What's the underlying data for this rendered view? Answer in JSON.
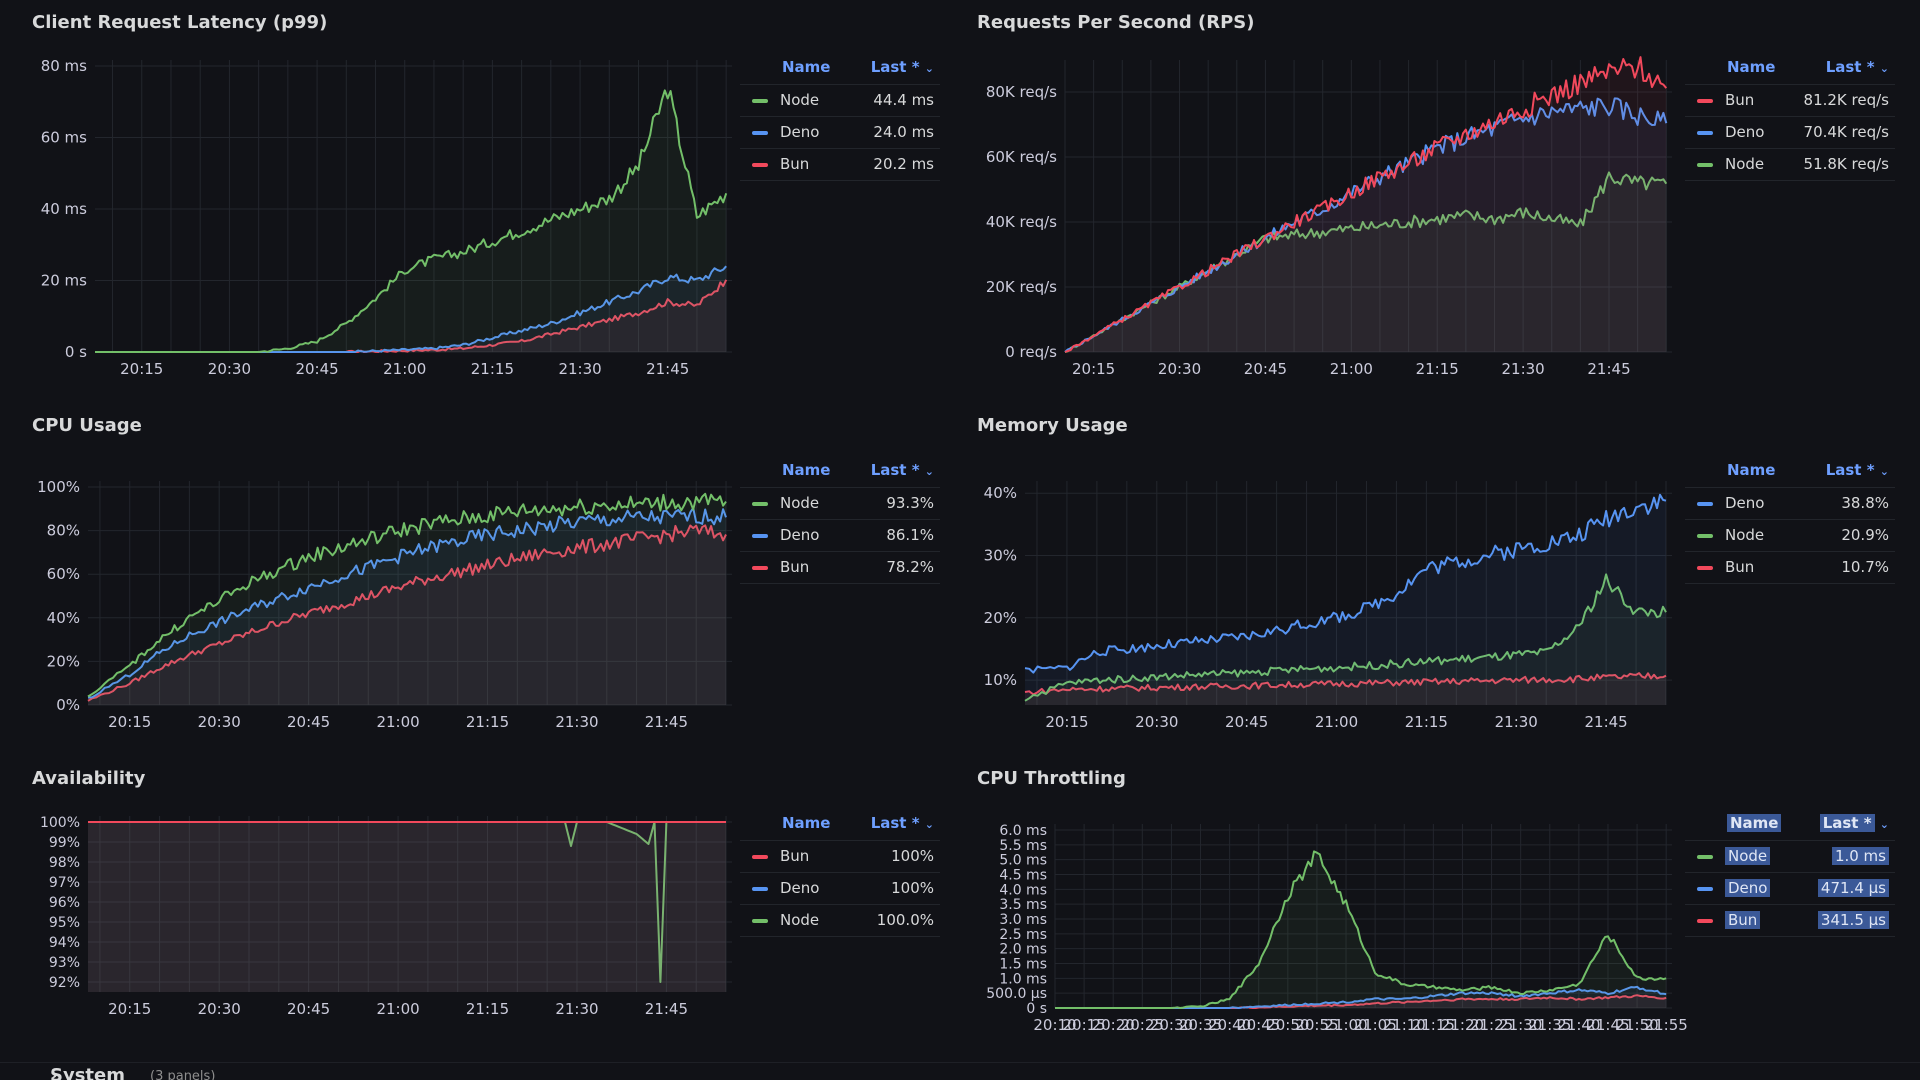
{
  "colors": {
    "Node": "#73bf69",
    "Deno": "#5794f2",
    "Bun": "#f2495c",
    "grid": "#23262d",
    "bg": "#111217"
  },
  "legend_headers": {
    "name": "Name",
    "last": "Last *"
  },
  "footer": {
    "label": "System",
    "sub": "(3 panels)"
  },
  "panels": [
    {
      "id": "latency",
      "title": "Client Request Latency (p99)",
      "legend": [
        {
          "name": "Node",
          "last": "44.4 ms"
        },
        {
          "name": "Deno",
          "last": "24.0 ms"
        },
        {
          "name": "Bun",
          "last": "20.2 ms"
        }
      ]
    },
    {
      "id": "rps",
      "title": "Requests Per Second (RPS)",
      "legend": [
        {
          "name": "Bun",
          "last": "81.2K req/s"
        },
        {
          "name": "Deno",
          "last": "70.4K req/s"
        },
        {
          "name": "Node",
          "last": "51.8K req/s"
        }
      ]
    },
    {
      "id": "cpu",
      "title": "CPU Usage",
      "legend": [
        {
          "name": "Node",
          "last": "93.3%"
        },
        {
          "name": "Deno",
          "last": "86.1%"
        },
        {
          "name": "Bun",
          "last": "78.2%"
        }
      ]
    },
    {
      "id": "mem",
      "title": "Memory Usage",
      "legend": [
        {
          "name": "Deno",
          "last": "38.8%"
        },
        {
          "name": "Node",
          "last": "20.9%"
        },
        {
          "name": "Bun",
          "last": "10.7%"
        }
      ]
    },
    {
      "id": "avail",
      "title": "Availability",
      "legend": [
        {
          "name": "Bun",
          "last": "100%"
        },
        {
          "name": "Deno",
          "last": "100%"
        },
        {
          "name": "Node",
          "last": "100.0%"
        }
      ]
    },
    {
      "id": "throttle",
      "title": "CPU Throttling",
      "legend_selected": true,
      "legend": [
        {
          "name": "Node",
          "last": "1.0 ms"
        },
        {
          "name": "Deno",
          "last": "471.4 µs"
        },
        {
          "name": "Bun",
          "last": "341.5 µs"
        }
      ]
    }
  ],
  "chart_data": [
    {
      "type": "line",
      "panel": "latency",
      "x_ticks": [
        "20:15",
        "20:30",
        "20:45",
        "21:00",
        "21:15",
        "21:30",
        "21:45"
      ],
      "y_ticks": [
        "0 s",
        "20 ms",
        "40 ms",
        "60 ms",
        "80 ms"
      ],
      "ylim": [
        0,
        80
      ],
      "grid": true,
      "legend_position": "right",
      "x": [
        "20:07",
        "20:15",
        "20:20",
        "20:25",
        "20:30",
        "20:35",
        "20:40",
        "20:45",
        "20:50",
        "20:55",
        "21:00",
        "21:05",
        "21:10",
        "21:15",
        "21:20",
        "21:25",
        "21:30",
        "21:35",
        "21:40",
        "21:45",
        "21:50",
        "21:55"
      ],
      "series": [
        {
          "name": "Node",
          "values": [
            0,
            0,
            0,
            0,
            0,
            0,
            1,
            3,
            8,
            15,
            23,
            26,
            28,
            31,
            34,
            37,
            40,
            43,
            52,
            74,
            38,
            44.4
          ]
        },
        {
          "name": "Deno",
          "values": [
            0,
            0,
            0,
            0,
            0,
            0,
            0,
            0,
            0,
            0.3,
            0.6,
            1,
            2,
            4,
            6,
            8,
            11,
            14,
            17,
            21,
            20,
            24.0
          ]
        },
        {
          "name": "Bun",
          "values": [
            0,
            0,
            0,
            0,
            0,
            0,
            0,
            0,
            0,
            0.2,
            0.4,
            0.6,
            1,
            2,
            3,
            5,
            7,
            9,
            11,
            14,
            13,
            20.2
          ]
        }
      ]
    },
    {
      "type": "line",
      "panel": "rps",
      "x_ticks": [
        "20:15",
        "20:30",
        "20:45",
        "21:00",
        "21:15",
        "21:30",
        "21:45"
      ],
      "y_ticks": [
        "0 req/s",
        "20K req/s",
        "40K req/s",
        "60K req/s",
        "80K req/s"
      ],
      "ylim": [
        0,
        88000
      ],
      "grid": true,
      "legend_position": "right",
      "x": [
        "20:10",
        "20:15",
        "20:20",
        "20:25",
        "20:30",
        "20:35",
        "20:40",
        "20:45",
        "20:50",
        "20:55",
        "21:00",
        "21:05",
        "21:10",
        "21:15",
        "21:20",
        "21:25",
        "21:30",
        "21:35",
        "21:40",
        "21:45",
        "21:50",
        "21:55"
      ],
      "series": [
        {
          "name": "Bun",
          "values": [
            0,
            5000,
            10000,
            15000,
            20000,
            25000,
            30000,
            35000,
            40000,
            44000,
            49000,
            54000,
            58000,
            63000,
            67000,
            71000,
            75000,
            79000,
            83000,
            86000,
            88000,
            81200
          ]
        },
        {
          "name": "Deno",
          "values": [
            0,
            5000,
            10000,
            15000,
            20000,
            25000,
            30000,
            35000,
            40000,
            44000,
            49000,
            54000,
            58000,
            63000,
            66000,
            69000,
            72000,
            74000,
            75000,
            76000,
            73000,
            70400
          ]
        },
        {
          "name": "Node",
          "values": [
            0,
            5000,
            10000,
            15000,
            20000,
            25000,
            30000,
            35000,
            36000,
            37000,
            38000,
            39000,
            40000,
            41000,
            42000,
            41000,
            43000,
            41000,
            39000,
            54000,
            52000,
            51800
          ]
        }
      ]
    },
    {
      "type": "line",
      "panel": "cpu",
      "x_ticks": [
        "20:15",
        "20:30",
        "20:45",
        "21:00",
        "21:15",
        "21:30",
        "21:45"
      ],
      "y_ticks": [
        "0%",
        "20%",
        "40%",
        "60%",
        "80%",
        "100%"
      ],
      "ylim": [
        0,
        100
      ],
      "grid": true,
      "legend_position": "right",
      "x": [
        "20:08",
        "20:15",
        "20:20",
        "20:25",
        "20:30",
        "20:35",
        "20:40",
        "20:45",
        "20:50",
        "20:55",
        "21:00",
        "21:05",
        "21:10",
        "21:15",
        "21:20",
        "21:25",
        "21:30",
        "21:35",
        "21:40",
        "21:45",
        "21:50",
        "21:55"
      ],
      "series": [
        {
          "name": "Node",
          "values": [
            4,
            18,
            30,
            40,
            48,
            56,
            62,
            68,
            72,
            76,
            80,
            83,
            85,
            87,
            89,
            90,
            91,
            92,
            92,
            93,
            93,
            93.3
          ]
        },
        {
          "name": "Deno",
          "values": [
            3,
            14,
            24,
            32,
            38,
            44,
            49,
            54,
            59,
            63,
            68,
            72,
            75,
            78,
            80,
            82,
            84,
            85,
            86,
            86,
            87,
            86.1
          ]
        },
        {
          "name": "Bun",
          "values": [
            2,
            10,
            17,
            23,
            28,
            33,
            38,
            42,
            46,
            50,
            54,
            58,
            61,
            64,
            67,
            70,
            72,
            74,
            76,
            78,
            80,
            78.2
          ]
        }
      ]
    },
    {
      "type": "line",
      "panel": "mem",
      "x_ticks": [
        "20:15",
        "20:30",
        "20:45",
        "21:00",
        "21:15",
        "21:30",
        "21:45"
      ],
      "y_ticks": [
        "10%",
        "20%",
        "30%",
        "40%"
      ],
      "ylim": [
        6,
        41
      ],
      "grid": true,
      "legend_position": "right",
      "x": [
        "20:08",
        "20:15",
        "20:20",
        "20:25",
        "20:30",
        "20:35",
        "20:40",
        "20:45",
        "20:50",
        "20:55",
        "21:00",
        "21:05",
        "21:10",
        "21:15",
        "21:20",
        "21:25",
        "21:30",
        "21:35",
        "21:40",
        "21:45",
        "21:50",
        "21:55"
      ],
      "series": [
        {
          "name": "Deno",
          "values": [
            11.5,
            12,
            14.5,
            15,
            15.5,
            16,
            16.5,
            17,
            18,
            19,
            20,
            21.5,
            24,
            28,
            29,
            30,
            31,
            32,
            33,
            36,
            38,
            38.8
          ]
        },
        {
          "name": "Node",
          "values": [
            7,
            9.5,
            10,
            10.2,
            10.5,
            10.8,
            11,
            11.2,
            11.5,
            11.8,
            12,
            12.3,
            12.6,
            13,
            13.3,
            13.6,
            14,
            14.4,
            18,
            26,
            21,
            20.9
          ]
        },
        {
          "name": "Bun",
          "values": [
            8,
            8.5,
            8.6,
            8.7,
            8.8,
            8.9,
            9,
            9.1,
            9.2,
            9.3,
            9.4,
            9.5,
            9.6,
            9.7,
            9.8,
            9.9,
            10,
            10.1,
            10.2,
            10.4,
            10.6,
            10.7
          ]
        }
      ]
    },
    {
      "type": "line",
      "panel": "avail",
      "x_ticks": [
        "20:15",
        "20:30",
        "20:45",
        "21:00",
        "21:15",
        "21:30",
        "21:45"
      ],
      "y_ticks": [
        "92%",
        "93%",
        "94%",
        "95%",
        "96%",
        "97%",
        "98%",
        "99%",
        "100%"
      ],
      "ylim": [
        91.5,
        100
      ],
      "grid": true,
      "legend_position": "right",
      "x": [
        "20:08",
        "20:15",
        "20:30",
        "20:45",
        "21:00",
        "21:15",
        "21:28",
        "21:29",
        "21:30",
        "21:35",
        "21:40",
        "21:42",
        "21:43",
        "21:44",
        "21:45",
        "21:46",
        "21:50",
        "21:55"
      ],
      "series": [
        {
          "name": "Bun",
          "values": [
            100,
            100,
            100,
            100,
            100,
            100,
            100,
            100,
            100,
            100,
            100,
            100,
            100,
            100,
            100,
            100,
            100,
            100
          ]
        },
        {
          "name": "Deno",
          "values": [
            100,
            100,
            100,
            100,
            100,
            100,
            100,
            100,
            100,
            100,
            100,
            100,
            100,
            100,
            100,
            100,
            100,
            100
          ]
        },
        {
          "name": "Node",
          "values": [
            100,
            100,
            100,
            100,
            100,
            100,
            100,
            98.8,
            100,
            100,
            99.4,
            98.9,
            100,
            92,
            100,
            100,
            100,
            100.0
          ]
        }
      ]
    },
    {
      "type": "line",
      "panel": "throttle",
      "x_ticks": [
        "20:10",
        "20:15",
        "20:20",
        "20:25",
        "20:30",
        "20:35",
        "20:40",
        "20:45",
        "20:50",
        "20:55",
        "21:00",
        "21:05",
        "21:10",
        "21:15",
        "21:20",
        "21:25",
        "21:30",
        "21:35",
        "21:40",
        "21:45",
        "21:50",
        "21:55"
      ],
      "y_ticks": [
        "0 s",
        "500.0 µs",
        "1.0 ms",
        "1.5 ms",
        "2.0 ms",
        "2.5 ms",
        "3.0 ms",
        "3.5 ms",
        "4.0 ms",
        "4.5 ms",
        "5.0 ms",
        "5.5 ms",
        "6.0 ms"
      ],
      "ylim": [
        0,
        6
      ],
      "grid": true,
      "legend_position": "right",
      "x": [
        "20:10",
        "20:15",
        "20:20",
        "20:25",
        "20:30",
        "20:35",
        "20:40",
        "20:45",
        "20:50",
        "20:55",
        "21:00",
        "21:05",
        "21:10",
        "21:15",
        "21:20",
        "21:25",
        "21:30",
        "21:35",
        "21:40",
        "21:45",
        "21:50",
        "21:55"
      ],
      "series": [
        {
          "name": "Node",
          "values": [
            0,
            0,
            0,
            0,
            0,
            0.05,
            0.3,
            1.5,
            3.8,
            5.2,
            3.5,
            1.2,
            0.8,
            0.7,
            0.6,
            0.7,
            0.5,
            0.6,
            0.8,
            2.5,
            1.0,
            1.0
          ]
        },
        {
          "name": "Deno",
          "values": [
            0,
            0,
            0,
            0,
            0,
            0,
            0,
            0.05,
            0.1,
            0.15,
            0.2,
            0.3,
            0.3,
            0.4,
            0.5,
            0.5,
            0.4,
            0.5,
            0.6,
            0.5,
            0.7,
            0.47
          ]
        },
        {
          "name": "Bun",
          "values": [
            0,
            0,
            0,
            0,
            0,
            0,
            0,
            0.02,
            0.05,
            0.08,
            0.1,
            0.15,
            0.2,
            0.25,
            0.3,
            0.3,
            0.3,
            0.35,
            0.3,
            0.35,
            0.4,
            0.34
          ]
        }
      ]
    }
  ]
}
